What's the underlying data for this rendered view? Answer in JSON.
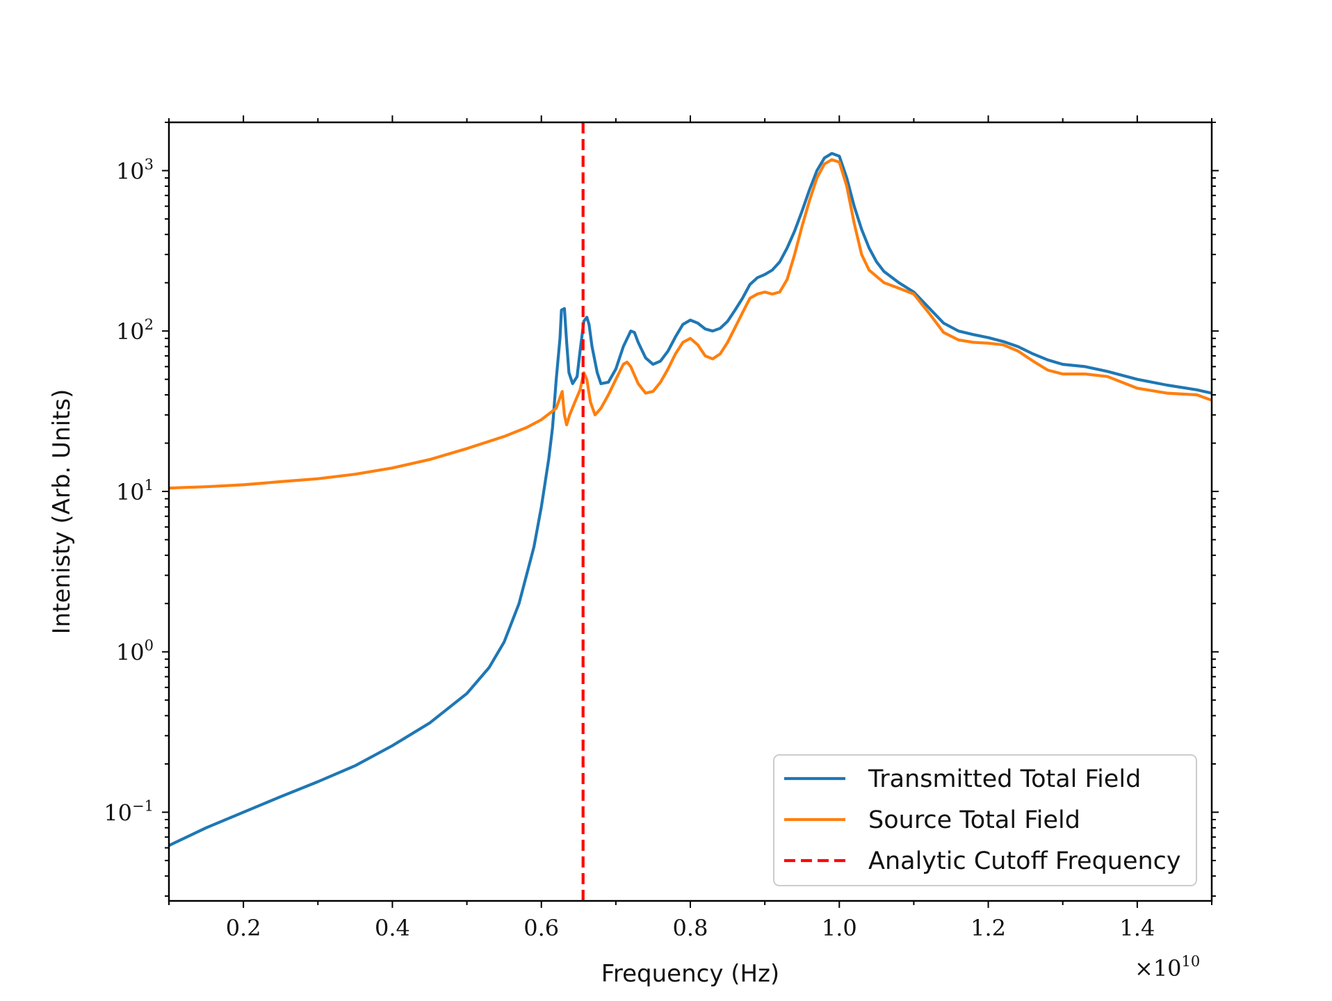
{
  "chart_data": {
    "type": "line",
    "xlabel": "Frequency (Hz)",
    "ylabel": "Intenisty (Arb. Units)",
    "x_offset_label": {
      "base": "×10",
      "exponent": "10"
    },
    "x_scale_factor": 10000000000.0,
    "xlim": [
      0.1,
      1.5
    ],
    "ylim": [
      0.028,
      2000
    ],
    "yscale": "log",
    "grid": false,
    "legend_position": "lower right",
    "x_ticks": [
      {
        "value": 0.2,
        "label": "0.2"
      },
      {
        "value": 0.4,
        "label": "0.4"
      },
      {
        "value": 0.6,
        "label": "0.6"
      },
      {
        "value": 0.8,
        "label": "0.8"
      },
      {
        "value": 1.0,
        "label": "1.0"
      },
      {
        "value": 1.2,
        "label": "1.2"
      },
      {
        "value": 1.4,
        "label": "1.4"
      }
    ],
    "y_ticks": [
      {
        "value": 0.1,
        "base": "10",
        "exponent": "−1"
      },
      {
        "value": 1,
        "base": "10",
        "exponent": "0"
      },
      {
        "value": 10,
        "base": "10",
        "exponent": "1"
      },
      {
        "value": 100,
        "base": "10",
        "exponent": "2"
      },
      {
        "value": 1000,
        "base": "10",
        "exponent": "3"
      }
    ],
    "series": [
      {
        "name": "Transmitted Total Field",
        "color": "#1f77b4",
        "style": "solid",
        "points": [
          [
            0.1,
            0.062
          ],
          [
            0.15,
            0.08
          ],
          [
            0.2,
            0.1
          ],
          [
            0.25,
            0.125
          ],
          [
            0.3,
            0.155
          ],
          [
            0.35,
            0.195
          ],
          [
            0.4,
            0.26
          ],
          [
            0.45,
            0.36
          ],
          [
            0.5,
            0.55
          ],
          [
            0.53,
            0.8
          ],
          [
            0.55,
            1.15
          ],
          [
            0.57,
            2.0
          ],
          [
            0.59,
            4.5
          ],
          [
            0.6,
            8.0
          ],
          [
            0.61,
            16
          ],
          [
            0.615,
            25
          ],
          [
            0.62,
            50
          ],
          [
            0.625,
            90
          ],
          [
            0.627,
            135
          ],
          [
            0.631,
            138
          ],
          [
            0.634,
            85
          ],
          [
            0.637,
            55
          ],
          [
            0.642,
            47
          ],
          [
            0.648,
            52
          ],
          [
            0.652,
            75
          ],
          [
            0.657,
            115
          ],
          [
            0.661,
            122
          ],
          [
            0.664,
            110
          ],
          [
            0.668,
            80
          ],
          [
            0.675,
            55
          ],
          [
            0.68,
            47
          ],
          [
            0.69,
            48
          ],
          [
            0.7,
            58
          ],
          [
            0.71,
            80
          ],
          [
            0.72,
            100
          ],
          [
            0.725,
            98
          ],
          [
            0.73,
            85
          ],
          [
            0.74,
            68
          ],
          [
            0.75,
            62
          ],
          [
            0.76,
            65
          ],
          [
            0.77,
            75
          ],
          [
            0.78,
            92
          ],
          [
            0.79,
            110
          ],
          [
            0.8,
            117
          ],
          [
            0.81,
            112
          ],
          [
            0.82,
            103
          ],
          [
            0.83,
            100
          ],
          [
            0.84,
            104
          ],
          [
            0.85,
            115
          ],
          [
            0.86,
            135
          ],
          [
            0.87,
            160
          ],
          [
            0.88,
            195
          ],
          [
            0.89,
            215
          ],
          [
            0.9,
            225
          ],
          [
            0.91,
            240
          ],
          [
            0.92,
            270
          ],
          [
            0.93,
            330
          ],
          [
            0.94,
            420
          ],
          [
            0.95,
            560
          ],
          [
            0.96,
            760
          ],
          [
            0.97,
            1000
          ],
          [
            0.98,
            1200
          ],
          [
            0.99,
            1280
          ],
          [
            1.0,
            1230
          ],
          [
            1.01,
            900
          ],
          [
            1.02,
            600
          ],
          [
            1.03,
            430
          ],
          [
            1.04,
            330
          ],
          [
            1.05,
            270
          ],
          [
            1.06,
            235
          ],
          [
            1.08,
            200
          ],
          [
            1.1,
            175
          ],
          [
            1.12,
            140
          ],
          [
            1.14,
            112
          ],
          [
            1.16,
            100
          ],
          [
            1.18,
            95
          ],
          [
            1.2,
            91
          ],
          [
            1.22,
            86
          ],
          [
            1.24,
            80
          ],
          [
            1.26,
            72
          ],
          [
            1.28,
            66
          ],
          [
            1.3,
            62
          ],
          [
            1.33,
            60
          ],
          [
            1.36,
            56
          ],
          [
            1.4,
            50
          ],
          [
            1.44,
            46
          ],
          [
            1.48,
            43
          ],
          [
            1.5,
            41
          ]
        ]
      },
      {
        "name": "Source Total Field",
        "color": "#ff7f0e",
        "style": "solid",
        "points": [
          [
            0.1,
            10.5
          ],
          [
            0.15,
            10.7
          ],
          [
            0.2,
            11.0
          ],
          [
            0.25,
            11.5
          ],
          [
            0.3,
            12.0
          ],
          [
            0.35,
            12.8
          ],
          [
            0.4,
            14.0
          ],
          [
            0.45,
            15.8
          ],
          [
            0.5,
            18.5
          ],
          [
            0.55,
            22
          ],
          [
            0.58,
            25
          ],
          [
            0.6,
            28
          ],
          [
            0.62,
            33
          ],
          [
            0.628,
            42
          ],
          [
            0.631,
            30
          ],
          [
            0.634,
            26
          ],
          [
            0.638,
            30
          ],
          [
            0.645,
            36
          ],
          [
            0.652,
            43
          ],
          [
            0.657,
            55
          ],
          [
            0.661,
            50
          ],
          [
            0.666,
            36
          ],
          [
            0.672,
            30
          ],
          [
            0.68,
            33
          ],
          [
            0.69,
            40
          ],
          [
            0.7,
            50
          ],
          [
            0.71,
            62
          ],
          [
            0.715,
            64
          ],
          [
            0.72,
            60
          ],
          [
            0.73,
            47
          ],
          [
            0.74,
            41
          ],
          [
            0.75,
            42
          ],
          [
            0.76,
            48
          ],
          [
            0.77,
            58
          ],
          [
            0.78,
            72
          ],
          [
            0.79,
            85
          ],
          [
            0.8,
            90
          ],
          [
            0.81,
            82
          ],
          [
            0.82,
            70
          ],
          [
            0.83,
            67
          ],
          [
            0.84,
            72
          ],
          [
            0.85,
            85
          ],
          [
            0.86,
            105
          ],
          [
            0.87,
            130
          ],
          [
            0.88,
            160
          ],
          [
            0.89,
            170
          ],
          [
            0.9,
            175
          ],
          [
            0.91,
            170
          ],
          [
            0.92,
            175
          ],
          [
            0.93,
            210
          ],
          [
            0.94,
            300
          ],
          [
            0.95,
            450
          ],
          [
            0.96,
            650
          ],
          [
            0.97,
            900
          ],
          [
            0.98,
            1100
          ],
          [
            0.99,
            1170
          ],
          [
            1.0,
            1130
          ],
          [
            1.01,
            800
          ],
          [
            1.02,
            470
          ],
          [
            1.03,
            300
          ],
          [
            1.04,
            240
          ],
          [
            1.06,
            200
          ],
          [
            1.08,
            185
          ],
          [
            1.1,
            170
          ],
          [
            1.12,
            130
          ],
          [
            1.14,
            98
          ],
          [
            1.16,
            88
          ],
          [
            1.18,
            85
          ],
          [
            1.2,
            84
          ],
          [
            1.22,
            82
          ],
          [
            1.24,
            75
          ],
          [
            1.26,
            65
          ],
          [
            1.28,
            57
          ],
          [
            1.3,
            54
          ],
          [
            1.33,
            54
          ],
          [
            1.36,
            52
          ],
          [
            1.4,
            44
          ],
          [
            1.44,
            41
          ],
          [
            1.48,
            40
          ],
          [
            1.5,
            37
          ]
        ]
      },
      {
        "name": "Analytic Cutoff Frequency",
        "color": "#ff0000",
        "style": "dashed",
        "vertical_x": 0.656
      }
    ]
  }
}
